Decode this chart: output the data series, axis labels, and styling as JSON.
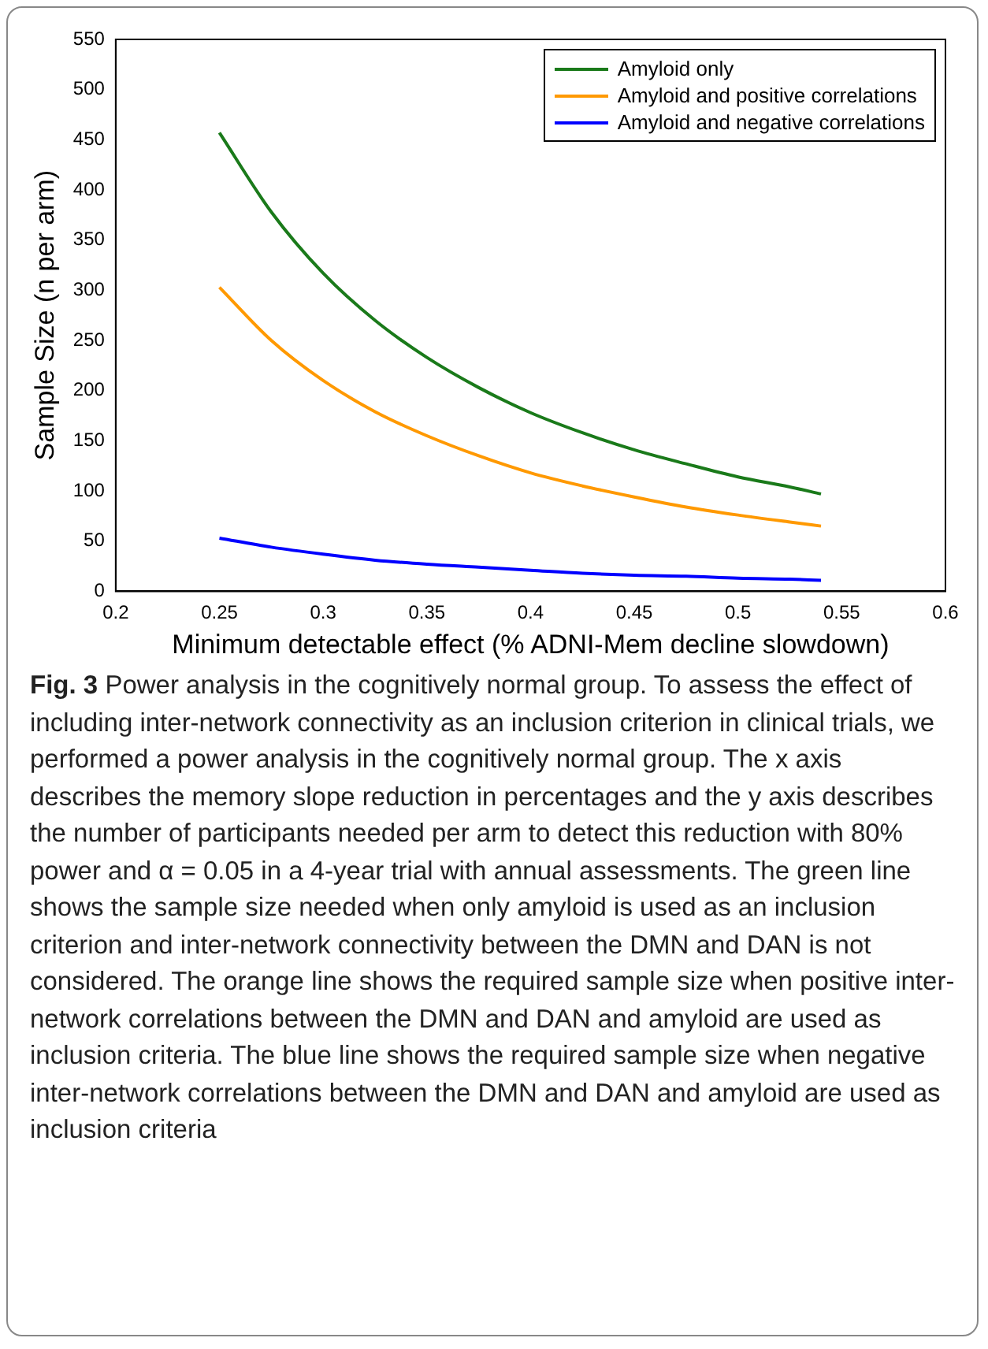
{
  "chart_data": {
    "type": "line",
    "xlabel": "Minimum detectable effect (% ADNI-Mem decline slowdown)",
    "ylabel": "Sample Size (n per arm)",
    "x": [
      0.25,
      0.275,
      0.3,
      0.325,
      0.35,
      0.375,
      0.4,
      0.425,
      0.45,
      0.475,
      0.5,
      0.525,
      0.54
    ],
    "series": [
      {
        "name": "Amyloid only",
        "color": "#1a7a1a",
        "values": [
          457,
          378,
          317,
          270,
          233,
          203,
          178,
          158,
          141,
          127,
          114,
          104,
          97
        ]
      },
      {
        "name": "Amyloid and positive correlations",
        "color": "#ff9900",
        "values": [
          303,
          250,
          210,
          179,
          155,
          135,
          118,
          105,
          94,
          84,
          76,
          69,
          65
        ]
      },
      {
        "name": "Amyloid and negative correlations",
        "color": "#0000ff",
        "values": [
          53,
          44,
          37,
          31,
          27,
          24,
          21,
          18,
          16,
          15,
          13,
          12,
          11
        ]
      }
    ],
    "xlim": [
      0.2,
      0.6
    ],
    "xticks": [
      {
        "value": 0.2,
        "label": "0.2"
      },
      0.25,
      {
        "value": 0.3,
        "label": "0.3"
      },
      0.35,
      {
        "value": 0.4,
        "label": "0.4"
      },
      0.45,
      {
        "value": 0.5,
        "label": "0.5"
      },
      0.55,
      {
        "value": 0.6,
        "label": "0.6"
      }
    ],
    "ylim": [
      0,
      550
    ],
    "yticks": [
      0,
      50,
      100,
      150,
      200,
      250,
      300,
      350,
      400,
      450,
      500,
      550
    ],
    "grid": false,
    "legend": "top right",
    "marker": "none",
    "line_style": "solid",
    "annotations": [
      "Fig. 3",
      "Power analysis in the cognitively normal group. To assess the effect of including inter-network connectivity as an inclusion criterion in clinical trials, we performed a power analysis in the cognitively normal group. The x axis describes the memory slope reduction in percentages and the y axis describes the number of participants needed per arm to detect this reduction with 80% power and α = 0.05 in a 4-year trial with annual assessments. The green line shows the sample size needed when only amyloid is used as an inclusion criterion and inter-network connectivity between the DMN and DAN is not considered. The orange line shows the required sample size when positive inter-network correlations between the DMN and DAN and amyloid are used as inclusion criteria. The blue line shows the required sample size when negative inter-network correlations between the DMN and DAN and amyloid are used as inclusion criteria"
    ]
  }
}
